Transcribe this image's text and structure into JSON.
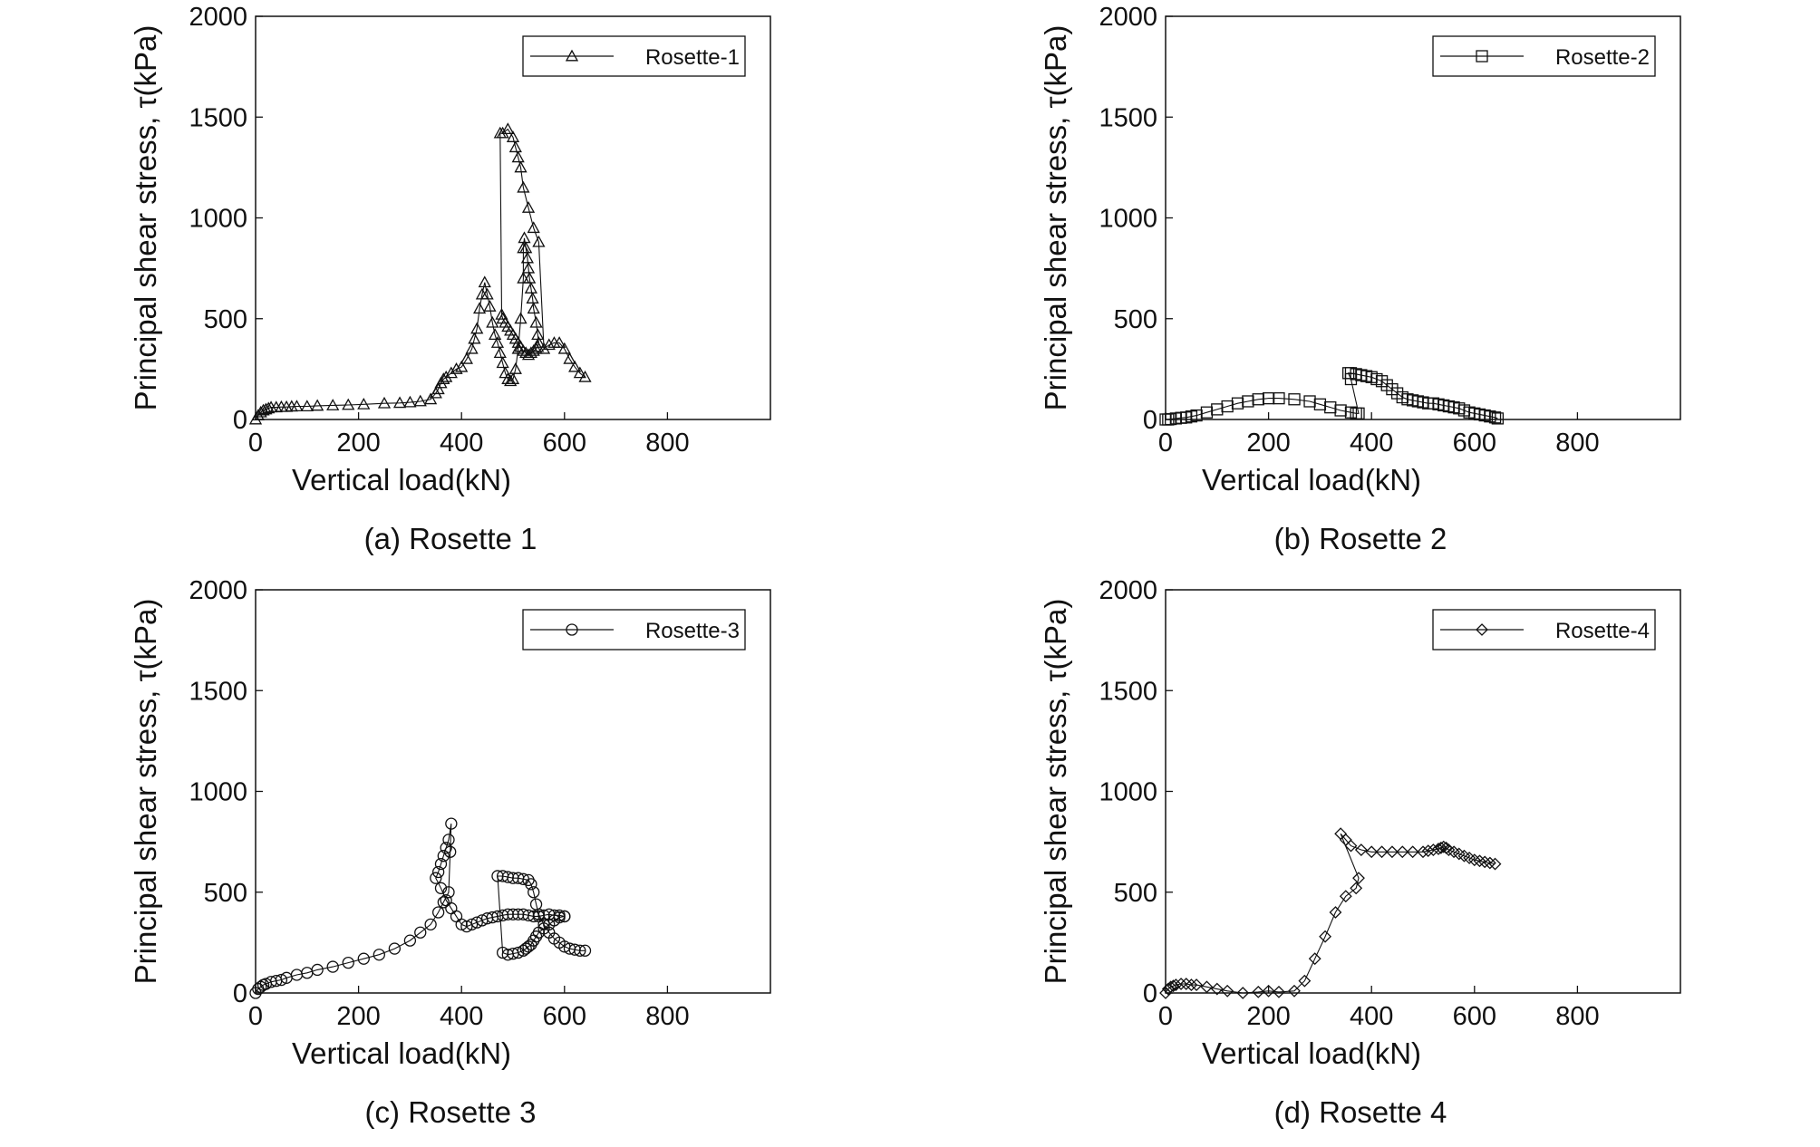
{
  "chart_data": [
    {
      "type": "line",
      "caption": "(a) Rosette 1",
      "xlabel": "Vertical load(kN)",
      "ylabel": "Principal shear stress, τ(kPa)",
      "xlim": [
        0,
        1000
      ],
      "ylim": [
        0,
        2000
      ],
      "xticks": [
        0,
        200,
        400,
        600,
        800
      ],
      "yticks": [
        0,
        500,
        1000,
        1500,
        2000
      ],
      "legend_position": "top-right",
      "marker": "triangle",
      "series": [
        {
          "name": "Rosette-1",
          "x": [
            0,
            5,
            10,
            15,
            20,
            25,
            30,
            40,
            50,
            60,
            70,
            80,
            100,
            120,
            150,
            180,
            210,
            250,
            280,
            300,
            320,
            340,
            350,
            355,
            360,
            365,
            370,
            380,
            390,
            400,
            410,
            420,
            425,
            430,
            435,
            440,
            445,
            450,
            455,
            460,
            465,
            470,
            475,
            480,
            485,
            490,
            495,
            500,
            505,
            510,
            515,
            520,
            520,
            522,
            525,
            528,
            530,
            532,
            535,
            538,
            540,
            545,
            548,
            550,
            548,
            545,
            540,
            535,
            530,
            525,
            520,
            515,
            510,
            505,
            500,
            495,
            490,
            485,
            480,
            478,
            475,
            480,
            490,
            500,
            505,
            510,
            515,
            520,
            530,
            540,
            550,
            560,
            570,
            580,
            590,
            600,
            610,
            620,
            630,
            640
          ],
          "y": [
            0,
            20,
            35,
            45,
            50,
            55,
            60,
            60,
            62,
            62,
            64,
            65,
            65,
            68,
            70,
            72,
            75,
            80,
            82,
            85,
            90,
            100,
            130,
            150,
            180,
            200,
            210,
            230,
            250,
            260,
            300,
            350,
            400,
            450,
            550,
            620,
            680,
            620,
            560,
            480,
            420,
            380,
            330,
            280,
            230,
            200,
            190,
            200,
            250,
            350,
            500,
            700,
            850,
            900,
            850,
            800,
            750,
            700,
            650,
            600,
            550,
            480,
            420,
            380,
            360,
            350,
            340,
            330,
            320,
            330,
            340,
            360,
            380,
            400,
            420,
            440,
            460,
            480,
            500,
            520,
            1420,
            1420,
            1440,
            1400,
            1350,
            1300,
            1250,
            1150,
            1050,
            950,
            880,
            350,
            370,
            380,
            380,
            350,
            300,
            260,
            230,
            210
          ]
        }
      ]
    },
    {
      "type": "line",
      "caption": "(b) Rosette 2",
      "xlabel": "Vertical load(kN)",
      "ylabel": "Principal shear stress, τ(kPa)",
      "xlim": [
        0,
        1000
      ],
      "ylim": [
        0,
        2000
      ],
      "xticks": [
        0,
        200,
        400,
        600,
        800
      ],
      "yticks": [
        0,
        500,
        1000,
        1500,
        2000
      ],
      "legend_position": "top-right",
      "marker": "square",
      "series": [
        {
          "name": "Rosette-2",
          "x": [
            0,
            5,
            10,
            20,
            30,
            40,
            50,
            60,
            80,
            100,
            120,
            140,
            160,
            180,
            200,
            220,
            250,
            280,
            300,
            320,
            340,
            360,
            370,
            375,
            360,
            355,
            360,
            370,
            380,
            390,
            400,
            410,
            420,
            430,
            440,
            450,
            460,
            470,
            480,
            490,
            500,
            510,
            520,
            530,
            540,
            550,
            560,
            570,
            580,
            590,
            600,
            610,
            620,
            630,
            640,
            645
          ],
          "y": [
            0,
            0,
            2,
            5,
            8,
            10,
            15,
            20,
            35,
            50,
            65,
            80,
            90,
            100,
            105,
            105,
            100,
            90,
            75,
            60,
            45,
            35,
            30,
            30,
            200,
            230,
            230,
            225,
            220,
            215,
            210,
            200,
            190,
            170,
            150,
            130,
            110,
            100,
            95,
            90,
            85,
            80,
            80,
            75,
            70,
            65,
            60,
            55,
            45,
            35,
            30,
            25,
            20,
            15,
            10,
            5
          ]
        }
      ]
    },
    {
      "type": "line",
      "caption": "(c) Rosette 3",
      "xlabel": "Vertical load(kN)",
      "ylabel": "Principal shear stress, τ(kPa)",
      "xlim": [
        0,
        1000
      ],
      "ylim": [
        0,
        2000
      ],
      "xticks": [
        0,
        200,
        400,
        600,
        800
      ],
      "yticks": [
        0,
        500,
        1000,
        1500,
        2000
      ],
      "legend_position": "top-right",
      "marker": "circle",
      "series": [
        {
          "name": "Rosette-3",
          "x": [
            0,
            5,
            10,
            15,
            20,
            30,
            40,
            50,
            60,
            80,
            100,
            120,
            150,
            180,
            210,
            240,
            270,
            300,
            320,
            340,
            355,
            365,
            375,
            378,
            380,
            375,
            370,
            365,
            360,
            355,
            350,
            360,
            370,
            380,
            390,
            400,
            410,
            420,
            430,
            440,
            450,
            460,
            470,
            480,
            490,
            500,
            510,
            520,
            530,
            540,
            550,
            560,
            570,
            580,
            590,
            600,
            600,
            590,
            580,
            570,
            560,
            550,
            545,
            540,
            535,
            530,
            525,
            520,
            510,
            500,
            490,
            480,
            470,
            480,
            490,
            500,
            510,
            520,
            530,
            535,
            540,
            545,
            550,
            560,
            570,
            580,
            590,
            600,
            610,
            620,
            630,
            640
          ],
          "y": [
            0,
            20,
            30,
            40,
            45,
            55,
            60,
            65,
            75,
            90,
            100,
            115,
            130,
            150,
            170,
            190,
            220,
            260,
            300,
            340,
            400,
            450,
            500,
            700,
            840,
            760,
            720,
            680,
            640,
            600,
            570,
            520,
            460,
            420,
            380,
            340,
            330,
            340,
            350,
            360,
            370,
            375,
            380,
            385,
            390,
            390,
            390,
            390,
            385,
            380,
            380,
            385,
            390,
            385,
            385,
            380,
            380,
            375,
            360,
            340,
            320,
            300,
            280,
            260,
            240,
            230,
            220,
            210,
            200,
            195,
            190,
            200,
            580,
            580,
            575,
            570,
            570,
            565,
            560,
            540,
            500,
            440,
            390,
            340,
            300,
            270,
            250,
            230,
            220,
            215,
            210,
            210
          ]
        }
      ]
    },
    {
      "type": "line",
      "caption": "(d) Rosette 4",
      "xlabel": "Vertical load(kN)",
      "ylabel": "Principal shear stress, τ(kPa)",
      "xlim": [
        0,
        1000
      ],
      "ylim": [
        0,
        2000
      ],
      "xticks": [
        0,
        200,
        400,
        600,
        800
      ],
      "yticks": [
        0,
        500,
        1000,
        1500,
        2000
      ],
      "legend_position": "top-right",
      "marker": "diamond",
      "series": [
        {
          "name": "Rosette-4",
          "x": [
            0,
            5,
            10,
            15,
            20,
            30,
            40,
            50,
            60,
            80,
            100,
            120,
            150,
            180,
            200,
            220,
            250,
            270,
            290,
            310,
            330,
            350,
            370,
            375,
            340,
            350,
            360,
            380,
            400,
            420,
            440,
            460,
            480,
            500,
            510,
            520,
            530,
            535,
            540,
            545,
            550,
            560,
            570,
            580,
            590,
            600,
            610,
            620,
            630,
            640
          ],
          "y": [
            0,
            20,
            30,
            35,
            40,
            45,
            45,
            40,
            40,
            30,
            20,
            10,
            0,
            5,
            10,
            5,
            10,
            60,
            170,
            280,
            400,
            480,
            520,
            570,
            790,
            760,
            730,
            710,
            700,
            700,
            700,
            700,
            700,
            700,
            705,
            710,
            715,
            720,
            725,
            720,
            710,
            700,
            690,
            680,
            670,
            660,
            655,
            650,
            645,
            640
          ]
        }
      ]
    }
  ]
}
